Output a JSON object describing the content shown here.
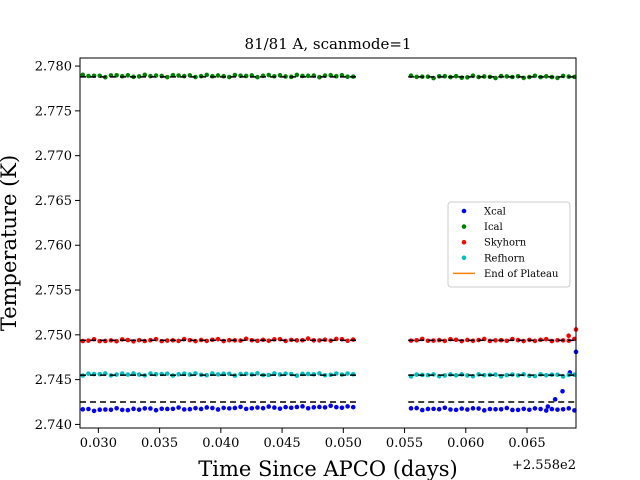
{
  "chart_data": {
    "type": "scatter",
    "title": "81/81 A, scanmode=1",
    "xlabel": "Time Since APCO (days)",
    "ylabel": "Temperature (K)",
    "offset_label": "+2.558e2",
    "xlim": [
      0.0285,
      0.069
    ],
    "ylim": [
      2.7396,
      2.7809
    ],
    "x_ticks": [
      0.03,
      0.035,
      0.04,
      0.045,
      0.05,
      0.055,
      0.06,
      0.065
    ],
    "x_tick_labels": [
      "0.030",
      "0.035",
      "0.040",
      "0.045",
      "0.050",
      "0.055",
      "0.060",
      "0.065"
    ],
    "y_ticks": [
      2.74,
      2.745,
      2.75,
      2.755,
      2.76,
      2.765,
      2.77,
      2.775,
      2.78
    ],
    "y_tick_labels": [
      "2.740",
      "2.745",
      "2.750",
      "2.755",
      "2.760",
      "2.765",
      "2.770",
      "2.775",
      "2.780"
    ],
    "grid": false,
    "legend_position": "center-right",
    "segments": [
      {
        "x_start": 0.0285,
        "x_end": 0.0511
      },
      {
        "x_start": 0.0553,
        "x_end": 0.069
      }
    ],
    "sample_step": 0.00046,
    "series": [
      {
        "name": "Xcal",
        "color": "#0000ff",
        "marker": "dot",
        "plateau": 2.7425,
        "segment_means": [
          2.7418,
          2.7417
        ],
        "segment_slopes": [
          0.016,
          -0.005
        ],
        "tail_points": [
          [
            0.0667,
            2.742
          ],
          [
            0.0673,
            2.7428
          ],
          [
            0.0679,
            2.7437
          ],
          [
            0.0685,
            2.7458
          ],
          [
            0.069,
            2.7481
          ]
        ]
      },
      {
        "name": "Ical",
        "color": "#008000",
        "marker": "dot",
        "plateau": 2.7788,
        "segment_means": [
          2.7789,
          2.7788
        ],
        "segment_slopes": [
          0,
          0
        ],
        "tail_points": []
      },
      {
        "name": "Skyhorn",
        "color": "#ff0000",
        "marker": "dot",
        "plateau": 2.7494,
        "segment_means": [
          2.7494,
          2.7494
        ],
        "segment_slopes": [
          0.004,
          0
        ],
        "tail_points": [
          [
            0.0684,
            2.7499
          ],
          [
            0.069,
            2.7506
          ]
        ]
      },
      {
        "name": "Refhorn",
        "color": "#00bfbf",
        "marker": "dot",
        "plateau": 2.7455,
        "segment_means": [
          2.7456,
          2.7455
        ],
        "segment_slopes": [
          0,
          0
        ],
        "tail_points": []
      }
    ],
    "extra_legend": [
      {
        "name": "End of Plateau",
        "color": "#ff7f0e",
        "marker": "line"
      }
    ]
  }
}
